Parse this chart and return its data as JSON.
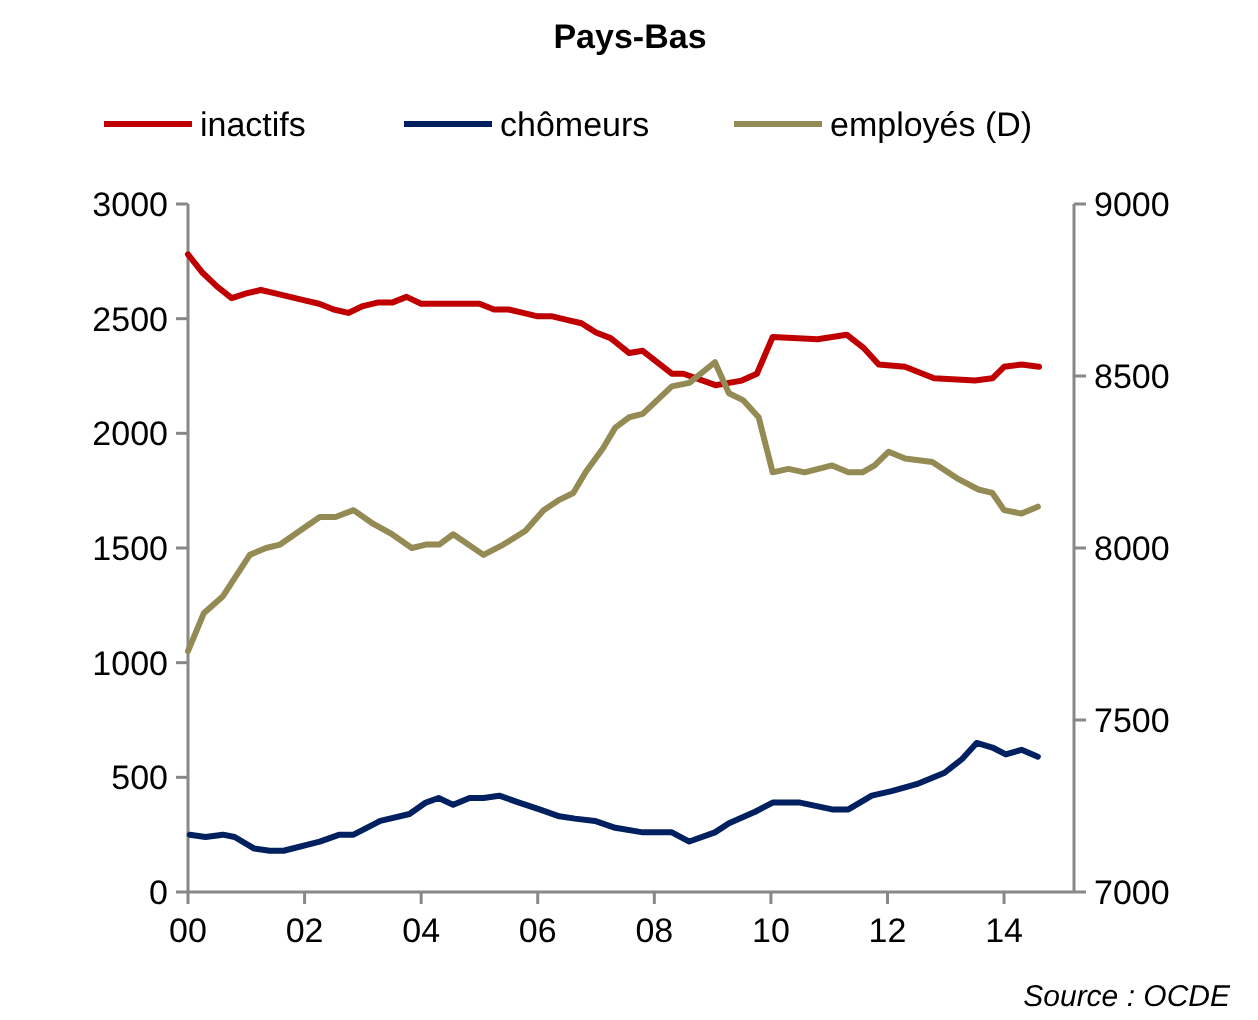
{
  "chart_data": {
    "type": "line",
    "title": "Pays-Bas",
    "annotations": [
      "Source : OCDE"
    ],
    "legend": "top",
    "grid": false,
    "line_style": "solid",
    "marker": "none",
    "xlim": [
      0,
      15.2
    ],
    "xticks": [
      {
        "value": 0,
        "label": "00"
      },
      {
        "value": 2,
        "label": "02"
      },
      {
        "value": 4,
        "label": "04"
      },
      {
        "value": 6,
        "label": "06"
      },
      {
        "value": 8,
        "label": "08"
      },
      {
        "value": 10,
        "label": "10"
      },
      {
        "value": 12,
        "label": "12"
      },
      {
        "value": 14,
        "label": "14"
      }
    ],
    "ylim": [
      0,
      3000
    ],
    "yticks": [
      0,
      500,
      1000,
      1500,
      2000,
      2500,
      3000
    ],
    "y2lim": [
      7000,
      9000
    ],
    "y2ticks": [
      7000,
      7500,
      8000,
      8500,
      9000
    ],
    "series": [
      {
        "name": "inactifs",
        "color": "#c00000",
        "x": [
          0,
          0.25,
          0.5,
          0.75,
          1,
          1.25,
          1.5,
          1.75,
          2,
          2.25,
          2.5,
          2.75,
          3,
          3.25,
          3.5,
          3.75,
          4,
          4.5,
          5,
          5.25,
          5.5,
          5.75,
          6,
          6.25,
          6.5,
          6.75,
          7,
          7.25,
          7.57,
          7.8,
          8.3,
          8.5,
          9.05,
          9.5,
          9.76,
          10.03,
          10.8,
          11.3,
          11.6,
          11.85,
          12.3,
          12.8,
          13.5,
          13.8,
          14,
          14.3,
          14.6
        ],
        "values": [
          2780,
          2700,
          2640,
          2590,
          2610,
          2625,
          2610,
          2595,
          2580,
          2565,
          2540,
          2525,
          2555,
          2570,
          2570,
          2595,
          2565,
          2565,
          2565,
          2540,
          2540,
          2525,
          2510,
          2510,
          2495,
          2480,
          2440,
          2415,
          2350,
          2360,
          2260,
          2260,
          2210,
          2230,
          2260,
          2420,
          2410,
          2430,
          2370,
          2300,
          2290,
          2240,
          2230,
          2240,
          2290,
          2300,
          2290
        ]
      },
      {
        "name": "chômeurs",
        "color": "#002060",
        "x": [
          0.03,
          0.3,
          0.6,
          0.8,
          1.13,
          1.4,
          1.64,
          2.26,
          2.6,
          2.84,
          3.3,
          3.8,
          4.08,
          4.3,
          4.55,
          4.83,
          5.07,
          5.34,
          5.68,
          6.03,
          6.37,
          6.64,
          6.98,
          7.33,
          7.8,
          8.3,
          8.6,
          9.04,
          9.28,
          9.73,
          10.03,
          10.5,
          11.05,
          11.33,
          11.73,
          12.07,
          12.5,
          12.98,
          13.28,
          13.53,
          13.8,
          14.03,
          14.3,
          14.58
        ],
        "values": [
          250,
          240,
          250,
          240,
          190,
          180,
          180,
          220,
          250,
          250,
          310,
          340,
          390,
          410,
          380,
          410,
          410,
          420,
          390,
          360,
          330,
          320,
          310,
          280,
          260,
          260,
          220,
          260,
          300,
          350,
          390,
          390,
          360,
          360,
          420,
          440,
          470,
          520,
          580,
          650,
          630,
          600,
          620,
          590
        ]
      },
      {
        "name": "employés (D)",
        "color": "#948a54",
        "axis": "y2",
        "x": [
          0,
          0.27,
          0.6,
          1.06,
          1.34,
          1.58,
          1.92,
          2.26,
          2.53,
          2.84,
          3.18,
          3.5,
          3.84,
          4.08,
          4.31,
          4.55,
          5.07,
          5.41,
          5.79,
          6.1,
          6.37,
          6.61,
          6.82,
          7.12,
          7.33,
          7.57,
          7.8,
          8.3,
          8.6,
          9.04,
          9.28,
          9.52,
          9.79,
          10.03,
          10.3,
          10.58,
          11.05,
          11.33,
          11.57,
          11.78,
          12.02,
          12.3,
          12.77,
          13.22,
          13.56,
          13.8,
          14,
          14.3,
          14.58
        ],
        "values": [
          7700,
          7810,
          7860,
          7980,
          8000,
          8010,
          8050,
          8090,
          8090,
          8110,
          8070,
          8040,
          8000,
          8010,
          8010,
          8040,
          7980,
          8010,
          8050,
          8110,
          8140,
          8160,
          8220,
          8290,
          8350,
          8380,
          8390,
          8470,
          8480,
          8540,
          8450,
          8430,
          8380,
          8220,
          8230,
          8220,
          8240,
          8220,
          8220,
          8240,
          8280,
          8260,
          8250,
          8200,
          8170,
          8160,
          8110,
          8100,
          8120
        ]
      }
    ]
  }
}
